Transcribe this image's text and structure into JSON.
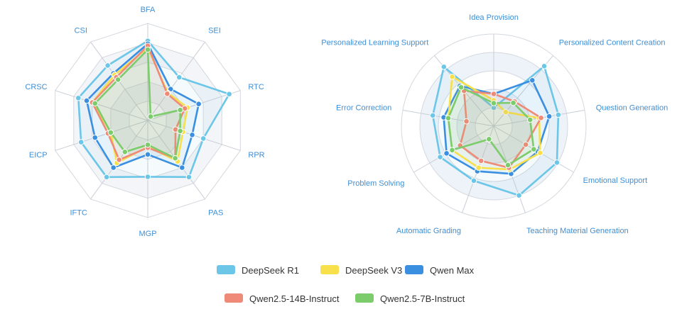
{
  "colors": {
    "DeepSeek R1": "#6cc6e8",
    "DeepSeek V3": "#f7e04a",
    "Qwen Max": "#3b8fe0",
    "Qwen2.5-14B-Instruct": "#ef8a78",
    "Qwen2.5-7B-Instruct": "#7ccc6c"
  },
  "legend": {
    "row1": [
      "DeepSeek R1",
      "DeepSeek V3",
      "Qwen Max"
    ],
    "row2": [
      "Qwen2.5-14B-Instruct",
      "Qwen2.5-7B-Instruct"
    ]
  },
  "chart_data": [
    {
      "type": "radar",
      "axes": [
        "BFA",
        "SEI",
        "RTC",
        "RPR",
        "PAS",
        "MGP",
        "IFTC",
        "EICP",
        "CRSC",
        "CSI"
      ],
      "grid_levels": 5,
      "range": [
        0,
        1
      ],
      "series": [
        {
          "name": "DeepSeek R1",
          "values": [
            0.82,
            0.55,
            0.88,
            0.6,
            0.72,
            0.58,
            0.72,
            0.72,
            0.75,
            0.7
          ]
        },
        {
          "name": "Qwen Max",
          "values": [
            0.79,
            0.4,
            0.55,
            0.48,
            0.6,
            0.35,
            0.6,
            0.57,
            0.66,
            0.6
          ]
        },
        {
          "name": "DeepSeek V3",
          "values": [
            0.75,
            0.35,
            0.43,
            0.38,
            0.52,
            0.27,
            0.54,
            0.4,
            0.6,
            0.58
          ]
        },
        {
          "name": "Qwen2.5-14B-Instruct",
          "values": [
            0.77,
            0.34,
            0.4,
            0.3,
            0.48,
            0.28,
            0.5,
            0.43,
            0.6,
            0.55
          ]
        },
        {
          "name": "Qwen2.5-7B-Instruct",
          "values": [
            0.73,
            0.05,
            0.35,
            0.35,
            0.48,
            0.25,
            0.4,
            0.4,
            0.57,
            0.52
          ]
        }
      ]
    },
    {
      "type": "radar",
      "axes": [
        "Idea Provision",
        "Personalized Content Creation",
        "Question Generation",
        "Emotional Support",
        "Teaching Material Generation",
        "Automatic Grading",
        "Problem Solving",
        "Error Correction",
        "Personalized Learning Support"
      ],
      "grid_levels": 5,
      "range": [
        0,
        1
      ],
      "series": [
        {
          "name": "DeepSeek R1",
          "values": [
            0.2,
            0.85,
            0.71,
            0.79,
            0.8,
            0.63,
            0.67,
            0.67,
            0.84
          ]
        },
        {
          "name": "Qwen Max",
          "values": [
            0.35,
            0.65,
            0.61,
            0.55,
            0.55,
            0.52,
            0.59,
            0.55,
            0.57
          ]
        },
        {
          "name": "DeepSeek V3",
          "values": [
            0.28,
            0.2,
            0.5,
            0.58,
            0.5,
            0.48,
            0.52,
            0.5,
            0.7
          ]
        },
        {
          "name": "Qwen2.5-14B-Instruct",
          "values": [
            0.35,
            0.35,
            0.52,
            0.4,
            0.48,
            0.4,
            0.42,
            0.3,
            0.5
          ]
        },
        {
          "name": "Qwen2.5-7B-Instruct",
          "values": [
            0.25,
            0.33,
            0.4,
            0.5,
            0.45,
            0.15,
            0.52,
            0.5,
            0.55
          ]
        }
      ]
    }
  ]
}
